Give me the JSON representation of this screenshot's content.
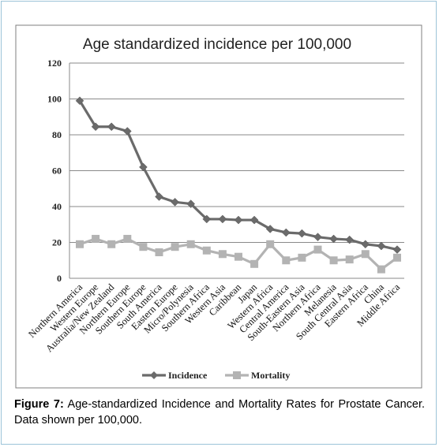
{
  "chart_data": {
    "type": "line",
    "title": "Age standardized incidence per 100,000",
    "xlabel": "",
    "ylabel": "",
    "ylim": [
      0,
      120
    ],
    "yticks": [
      0,
      20,
      40,
      60,
      80,
      100,
      120
    ],
    "grid": true,
    "legend_position": "bottom",
    "categories": [
      "Northern America",
      "Western Europe",
      "Australia/New Zealand",
      "Northern Europe",
      "Southern Europe",
      "South America",
      "Eastern Europe",
      "Micro/Polynesia",
      "Southern Africa",
      "Western Asia",
      "Caribbean",
      "Japan",
      "Western Africa",
      "Central America",
      "South-Eastern Asia",
      "Northern Africa",
      "Melanesia",
      "South Central Asia",
      "Eastern Africa",
      "China",
      "Middle Africa"
    ],
    "series": [
      {
        "name": "Incidence",
        "color": "#6b6b6b",
        "values": [
          99,
          84.5,
          84.5,
          82,
          62,
          45.5,
          42.5,
          41.5,
          33,
          33,
          32.5,
          32.5,
          27.5,
          25.5,
          25,
          23,
          22,
          21.5,
          19,
          18,
          16
        ]
      },
      {
        "name": "Mortality",
        "color": "#b3b3b3",
        "values": [
          19,
          22,
          19,
          22,
          17.5,
          14.5,
          17.5,
          19,
          15.5,
          13.5,
          12,
          8,
          19,
          10,
          11.5,
          16,
          10,
          10.5,
          13.5,
          5,
          11.5
        ]
      }
    ]
  },
  "caption": {
    "label": "Figure 7:",
    "text": " Age-standardized Incidence and Mortality Rates for Prostate Cancer. Data shown per 100,000."
  }
}
